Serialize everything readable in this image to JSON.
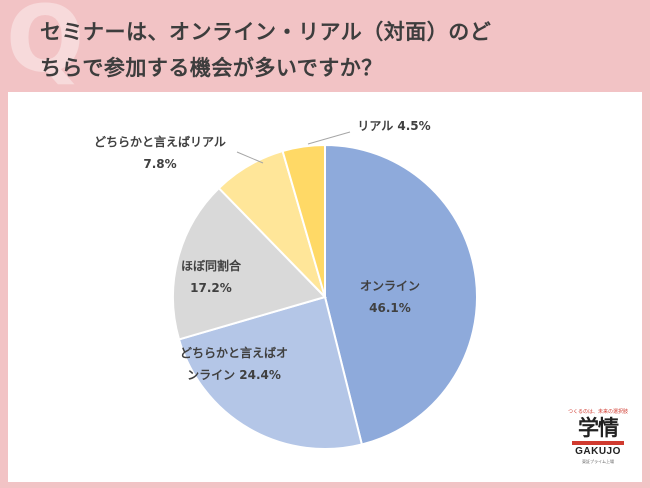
{
  "header": {
    "q_mark": "Q",
    "title_line1": "セミナーは、オンライン・リアル（対面）のど",
    "title_line2": "ちらで参加する機会が多いですか？"
  },
  "logo": {
    "tagline": "つくるのは、未来の選択肢",
    "kanji": "学情",
    "brand": "GAKUJO",
    "sub": "東証プライム上場"
  },
  "chart_data": {
    "type": "pie",
    "start_angle_deg": 0,
    "direction": "clockwise",
    "slices": [
      {
        "label": "オンライン",
        "value": 46.1,
        "display": "46.1%",
        "color": "#8eaadb"
      },
      {
        "label": "どちらかと言えばオンライン",
        "value": 24.4,
        "display": "24.4%",
        "color": "#b4c6e7"
      },
      {
        "label": "ほぼ同割合",
        "value": 17.2,
        "display": "17.2%",
        "color": "#d9d9d9"
      },
      {
        "label": "どちらかと言えばリアル",
        "value": 7.8,
        "display": "7.8%",
        "color": "#ffe699"
      },
      {
        "label": "リアル",
        "value": 4.5,
        "display": "4.5%",
        "color": "#ffd966"
      }
    ],
    "data_labels": [
      {
        "lines": [
          "オンライン",
          "46.1%"
        ]
      },
      {
        "lines": [
          "どちらかと言えばオ",
          "ンライン 24.4%"
        ]
      },
      {
        "lines": [
          "ほぼ同割合",
          "17.2%"
        ]
      },
      {
        "lines": [
          "どちらかと言えばリアル",
          "7.8%"
        ]
      },
      {
        "lines": [
          "リアル 4.5%"
        ]
      }
    ]
  }
}
